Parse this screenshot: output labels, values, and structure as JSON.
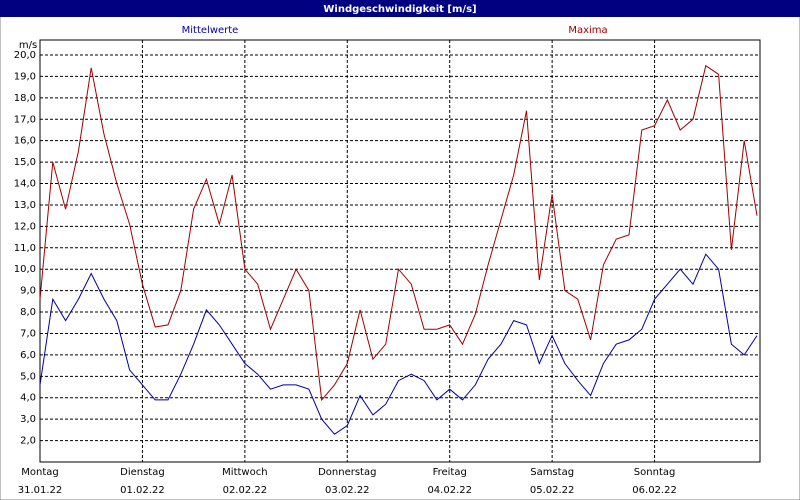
{
  "chart_data": {
    "type": "line",
    "title": "Windgeschwindigkeit [m/s]",
    "y_label": "m/s",
    "x": [
      0,
      3,
      6,
      9,
      12,
      15,
      18,
      21,
      24,
      27,
      30,
      33,
      36,
      39,
      42,
      45,
      48,
      51,
      54,
      57,
      60,
      63,
      66,
      69,
      72,
      75,
      78,
      81,
      84,
      87,
      90,
      93,
      96,
      99,
      102,
      105,
      108,
      111,
      114,
      117,
      120,
      123,
      126,
      129,
      132,
      135,
      138,
      141,
      144,
      147,
      150,
      153,
      156,
      159,
      162,
      165,
      168
    ],
    "series": [
      {
        "name": "Mittelwerte",
        "color": "#0000a0",
        "values": [
          4.6,
          8.6,
          7.6,
          8.6,
          9.8,
          8.6,
          7.6,
          5.3,
          4.6,
          3.9,
          3.9,
          5.1,
          6.5,
          8.1,
          7.4,
          6.5,
          5.6,
          5.1,
          4.4,
          4.6,
          4.6,
          4.4,
          3.0,
          2.3,
          2.7,
          4.1,
          3.2,
          3.7,
          4.8,
          5.1,
          4.8,
          3.9,
          4.4,
          3.9,
          4.6,
          5.8,
          6.5,
          7.6,
          7.4,
          5.6,
          6.9,
          5.6,
          4.8,
          4.1,
          5.6,
          6.5,
          6.7,
          7.2,
          8.6,
          9.3,
          10.0,
          9.3,
          10.7,
          10.0,
          6.5,
          6.0,
          6.9
        ]
      },
      {
        "name": "Maxima",
        "color": "#a00000",
        "values": [
          8.6,
          15.0,
          12.8,
          15.5,
          19.4,
          16.3,
          14.0,
          12.1,
          9.3,
          7.3,
          7.4,
          9.0,
          12.8,
          14.2,
          12.1,
          14.4,
          10.0,
          9.3,
          7.2,
          8.6,
          10.0,
          9.0,
          3.9,
          4.6,
          5.6,
          8.1,
          5.8,
          6.5,
          10.0,
          9.3,
          7.2,
          7.2,
          7.4,
          6.5,
          7.9,
          10.2,
          12.3,
          14.4,
          17.4,
          9.5,
          13.5,
          9.0,
          8.6,
          6.7,
          10.2,
          11.4,
          11.6,
          16.5,
          16.7,
          17.9,
          16.5,
          17.0,
          19.5,
          19.1,
          10.9,
          16.0,
          12.5
        ]
      }
    ],
    "xlim": [
      0,
      168
    ],
    "xticks": [
      {
        "value": 0,
        "label": "Montag",
        "date": "31.01.22"
      },
      {
        "value": 24,
        "label": "Dienstag",
        "date": "01.02.22"
      },
      {
        "value": 48,
        "label": "Mittwoch",
        "date": "02.02.22"
      },
      {
        "value": 72,
        "label": "Donnerstag",
        "date": "03.02.22"
      },
      {
        "value": 96,
        "label": "Freitag",
        "date": "04.02.22"
      },
      {
        "value": 120,
        "label": "Samstag",
        "date": "05.02.22"
      },
      {
        "value": 144,
        "label": "Sonntag",
        "date": "06.02.22"
      }
    ],
    "ylim": [
      1.0,
      20.7
    ],
    "yticks": [
      {
        "value": 2,
        "label": "2,0"
      },
      {
        "value": 3,
        "label": "3,0"
      },
      {
        "value": 4,
        "label": "4,0"
      },
      {
        "value": 5,
        "label": "5,0"
      },
      {
        "value": 6,
        "label": "6,0"
      },
      {
        "value": 7,
        "label": "7,0"
      },
      {
        "value": 8,
        "label": "8,0"
      },
      {
        "value": 9,
        "label": "9,0"
      },
      {
        "value": 10,
        "label": "10,0"
      },
      {
        "value": 11,
        "label": "11,0"
      },
      {
        "value": 12,
        "label": "12,0"
      },
      {
        "value": 13,
        "label": "13,0"
      },
      {
        "value": 14,
        "label": "14,0"
      },
      {
        "value": 15,
        "label": "15,0"
      },
      {
        "value": 16,
        "label": "16,0"
      },
      {
        "value": 17,
        "label": "17,0"
      },
      {
        "value": 18,
        "label": "18,0"
      },
      {
        "value": 19,
        "label": "19,0"
      },
      {
        "value": 20,
        "label": "20,0"
      }
    ],
    "grid": true
  }
}
